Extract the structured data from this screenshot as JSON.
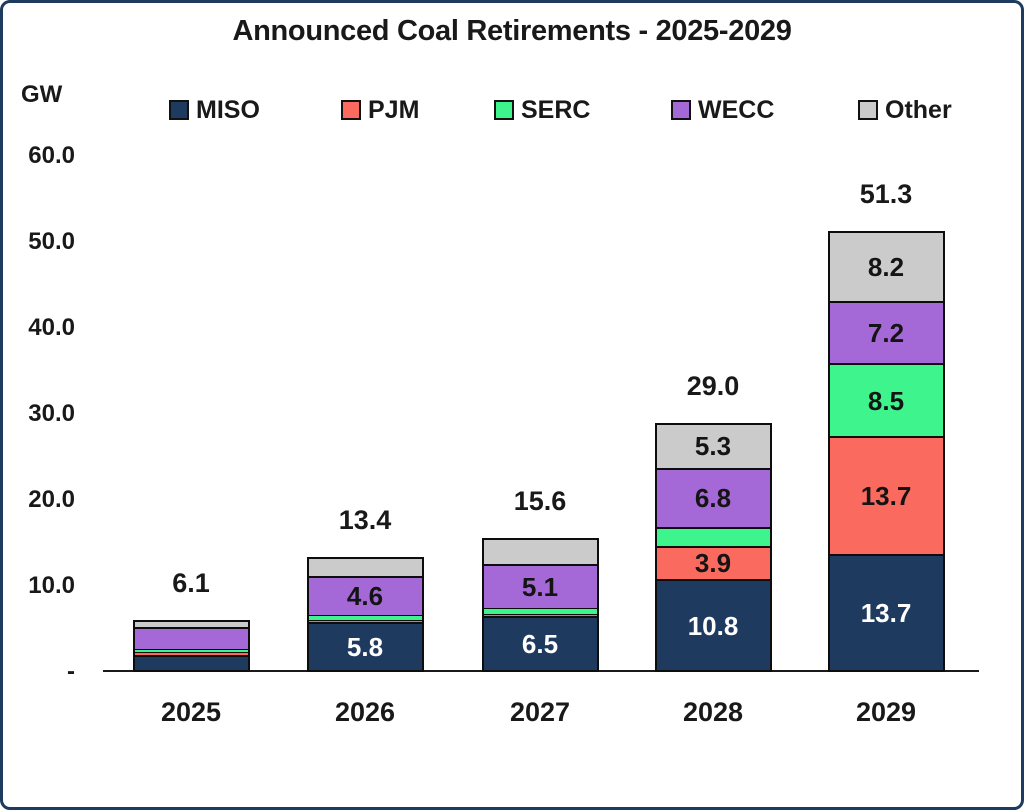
{
  "title": "Announced Coal Retirements - 2025-2029",
  "y_axis_unit": "GW",
  "chart_data": {
    "type": "bar",
    "subtype": "stacked-vertical",
    "title": "Announced Coal Retirements - 2025-2029",
    "ylabel": "GW",
    "ylim": [
      0,
      60
    ],
    "grid": false,
    "legend_position": "top",
    "categories": [
      "2025",
      "2026",
      "2027",
      "2028",
      "2029"
    ],
    "y_ticks": [
      "60.0",
      "50.0",
      "40.0",
      "30.0",
      "20.0",
      "10.0",
      "-"
    ],
    "totals": [
      "6.1",
      "13.4",
      "15.6",
      "29.0",
      "51.3"
    ],
    "series": [
      {
        "name": "MISO",
        "color": "#1F3A5F",
        "label_color": "#FFFFFF",
        "values": [
          2.0,
          5.8,
          6.5,
          10.8,
          13.7
        ],
        "labels": [
          "",
          "5.8",
          "6.5",
          "10.8",
          "13.7"
        ]
      },
      {
        "name": "PJM",
        "color": "#FA6A5F",
        "label_color": "#141414",
        "values": [
          0.3,
          0.3,
          0.3,
          3.9,
          13.7
        ],
        "labels": [
          "",
          "",
          "",
          "3.9",
          "13.7"
        ]
      },
      {
        "name": "SERC",
        "color": "#3DF58C",
        "label_color": "#141414",
        "values": [
          0.4,
          0.5,
          0.7,
          2.2,
          8.5
        ],
        "labels": [
          "",
          "",
          "",
          "",
          "8.5"
        ]
      },
      {
        "name": "WECC",
        "color": "#A469D6",
        "label_color": "#141414",
        "values": [
          2.5,
          4.6,
          5.1,
          6.8,
          7.2
        ],
        "labels": [
          "",
          "4.6",
          "5.1",
          "6.8",
          "7.2"
        ]
      },
      {
        "name": "Other",
        "color": "#CBCBCB",
        "label_color": "#141414",
        "values": [
          0.9,
          2.2,
          3.0,
          5.3,
          8.2
        ],
        "labels": [
          "",
          "",
          "",
          "5.3",
          "8.2"
        ]
      }
    ]
  }
}
